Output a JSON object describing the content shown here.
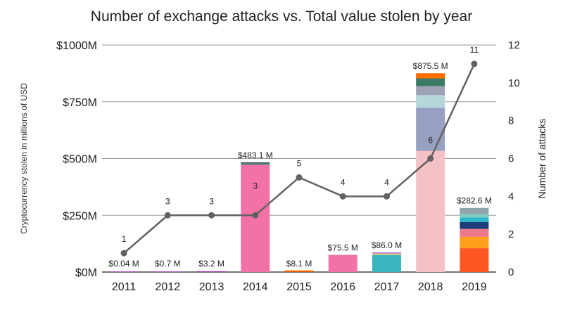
{
  "chart_data": {
    "type": "bar",
    "title": "Number of exchange attacks vs. Total value stolen by year",
    "ylabel": "Cryptocurrency stolen in millions of USD",
    "y2label": "Number of attacks",
    "categories": [
      "2011",
      "2012",
      "2013",
      "2014",
      "2015",
      "2016",
      "2017",
      "2018",
      "2019"
    ],
    "value_labels": [
      "$0.04 M",
      "$0.7 M",
      "$3.2 M",
      "$483.1 M",
      "$8.1 M",
      "$75.5 M",
      "$86.0 M",
      "$875.5 M",
      "$282.6 M"
    ],
    "ylim": [
      0,
      1000
    ],
    "y_ticks": [
      0,
      250,
      500,
      750,
      1000
    ],
    "y_tick_labels": [
      "$0M",
      "$250M",
      "$500M",
      "$750M",
      "$1000M"
    ],
    "y2lim": [
      0,
      12
    ],
    "y2_ticks": [
      0,
      2,
      4,
      6,
      8,
      10,
      12
    ],
    "grid": true,
    "stacked_bars": [
      [
        {
          "value": 0.04,
          "color": "#b04ac6"
        }
      ],
      [
        {
          "value": 0.7,
          "color": "#b04ac6"
        }
      ],
      [
        {
          "value": 3.2,
          "color": "#9c27b0"
        }
      ],
      [
        {
          "value": 473,
          "color": "#f272a8"
        },
        {
          "value": 6,
          "color": "#2e7d6e"
        },
        {
          "value": 4.1,
          "color": "#37474f"
        }
      ],
      [
        {
          "value": 5,
          "color": "#e65100"
        },
        {
          "value": 3.1,
          "color": "#f9a825"
        }
      ],
      [
        {
          "value": 75.5,
          "color": "#f272a8"
        }
      ],
      [
        {
          "value": 76,
          "color": "#3ab5bd"
        },
        {
          "value": 4,
          "color": "#ffd54f"
        },
        {
          "value": 3,
          "color": "#f48fb1"
        },
        {
          "value": 3,
          "color": "#7e57c2"
        }
      ],
      [
        {
          "value": 534,
          "color": "#f4c2c6"
        },
        {
          "value": 190,
          "color": "#98a0c2"
        },
        {
          "value": 55,
          "color": "#b6d6dc"
        },
        {
          "value": 40,
          "color": "#9ea3b5"
        },
        {
          "value": 34,
          "color": "#3d7a64"
        },
        {
          "value": 22.5,
          "color": "#ff6d00"
        }
      ],
      [
        {
          "value": 105,
          "color": "#ff5722"
        },
        {
          "value": 50,
          "color": "#ff9f1c"
        },
        {
          "value": 35,
          "color": "#ef7a8c"
        },
        {
          "value": 30,
          "color": "#1c3f7a"
        },
        {
          "value": 20,
          "color": "#29b6c9"
        },
        {
          "value": 15,
          "color": "#80cbc4"
        },
        {
          "value": 27.6,
          "color": "#90a4ae"
        }
      ]
    ],
    "line_series": {
      "values": [
        1,
        3,
        3,
        3,
        5,
        4,
        4,
        6,
        11
      ],
      "color": "#616161"
    }
  }
}
